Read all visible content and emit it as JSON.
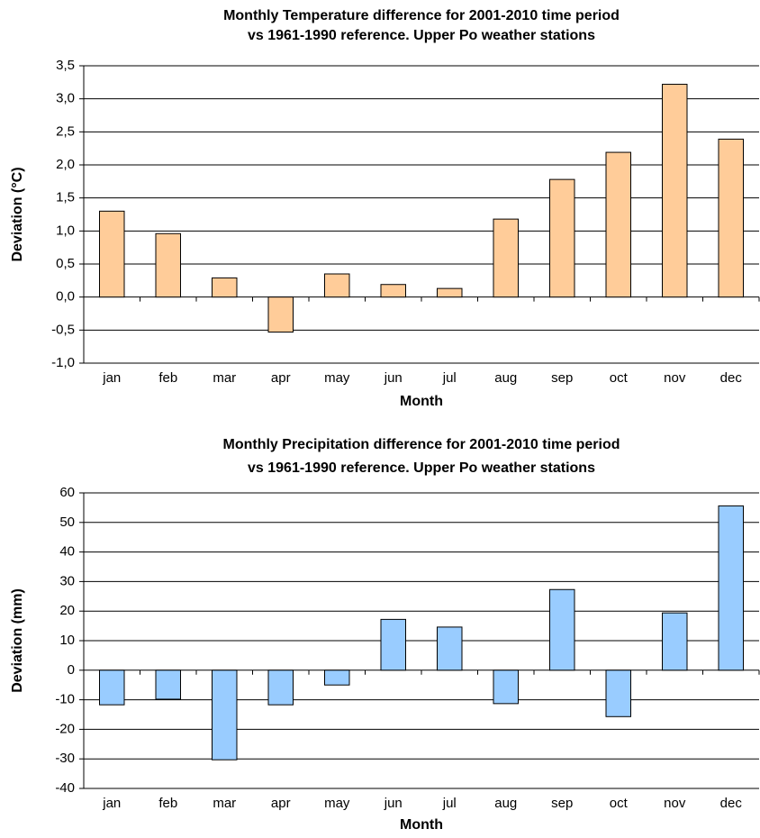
{
  "chart_data": [
    {
      "type": "bar",
      "title": [
        "Monthly Temperature difference for 2001-2010 time period",
        "vs 1961-1990 reference. Upper Po weather stations"
      ],
      "x_label": "Month",
      "y_label": "Deviation (°C)",
      "categories": [
        "jan",
        "feb",
        "mar",
        "apr",
        "may",
        "jun",
        "jul",
        "aug",
        "sep",
        "oct",
        "nov",
        "dec"
      ],
      "values": [
        1.3,
        0.96,
        0.29,
        -0.53,
        0.35,
        0.19,
        0.13,
        1.18,
        1.78,
        2.19,
        3.22,
        2.39
      ],
      "color": "#ffcc99",
      "ylim": [
        -1.0,
        3.5
      ],
      "yticks": [
        {
          "value": -1.0,
          "label": "-1,0"
        },
        {
          "value": -0.5,
          "label": "-0,5"
        },
        {
          "value": 0,
          "label": "0,0"
        },
        {
          "value": 0.5,
          "label": "0,5"
        },
        {
          "value": 1.0,
          "label": "1,0"
        },
        {
          "value": 1.5,
          "label": "1,5"
        },
        {
          "value": 2.0,
          "label": "2,0"
        },
        {
          "value": 2.5,
          "label": "2,5"
        },
        {
          "value": 3.0,
          "label": "3,0"
        },
        {
          "value": 3.5,
          "label": "3,5"
        }
      ],
      "grid": true
    },
    {
      "type": "bar",
      "title": [
        "Monthly Precipitation difference for 2001-2010 time period",
        "vs 1961-1990 reference. Upper Po  weather stations"
      ],
      "x_label": "Month",
      "y_label": "Deviation (mm)",
      "categories": [
        "jan",
        "feb",
        "mar",
        "apr",
        "may",
        "jun",
        "jul",
        "aug",
        "sep",
        "oct",
        "nov",
        "dec"
      ],
      "values": [
        -11.7,
        -9.8,
        -30.3,
        -11.7,
        -5.0,
        17.2,
        14.6,
        -11.3,
        27.3,
        -15.7,
        19.4,
        55.6
      ],
      "color": "#99ccff",
      "ylim": [
        -40,
        60
      ],
      "yticks": [
        -40,
        -30,
        -20,
        -10,
        0,
        10,
        20,
        30,
        40,
        50,
        60
      ],
      "grid": true
    }
  ]
}
